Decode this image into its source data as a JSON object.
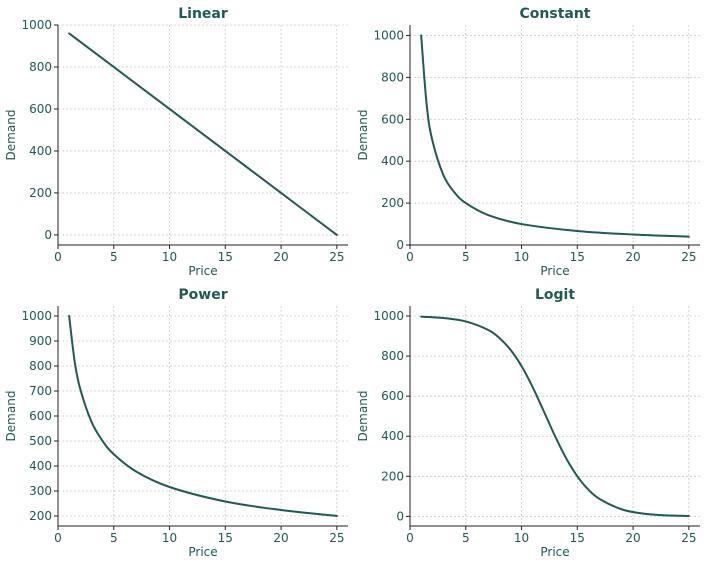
{
  "style": {
    "line_color": "#1f5a55",
    "text_color": "#1f5a55",
    "grid_color": "#c8c8c8",
    "background": "#ffffff"
  },
  "chart_data": [
    {
      "type": "line",
      "title": "Linear",
      "xlabel": "Price",
      "ylabel": "Demand",
      "xlim": [
        0,
        26
      ],
      "ylim": [
        -48,
        1000
      ],
      "xticks": [
        0,
        5,
        10,
        15,
        20,
        25
      ],
      "xtick_labels": [
        "0",
        "5",
        "10",
        "15",
        "20",
        "25"
      ],
      "yticks": [
        0,
        200,
        400,
        600,
        800,
        1000
      ],
      "ytick_labels": [
        "0",
        "200",
        "400",
        "600",
        "800",
        "1000"
      ],
      "grid": true,
      "x": [
        1,
        5,
        10,
        15,
        20,
        25
      ],
      "y": [
        960,
        800,
        600,
        400,
        200,
        0
      ]
    },
    {
      "type": "line",
      "title": "Constant",
      "xlabel": "Price",
      "ylabel": "Demand",
      "xlim": [
        0,
        26
      ],
      "ylim": [
        0,
        1050
      ],
      "xticks": [
        0,
        5,
        10,
        15,
        20,
        25
      ],
      "xtick_labels": [
        "0",
        "5",
        "10",
        "15",
        "20",
        "25"
      ],
      "yticks": [
        0,
        200,
        400,
        600,
        800,
        1000
      ],
      "ytick_labels": [
        "0",
        "200",
        "400",
        "600",
        "800",
        "1000"
      ],
      "grid": true,
      "x": [
        1,
        1.5,
        2,
        3,
        4,
        5,
        7,
        10,
        15,
        20,
        25
      ],
      "y": [
        1000,
        667,
        500,
        333,
        250,
        200,
        143,
        100,
        67,
        50,
        40
      ]
    },
    {
      "type": "line",
      "title": "Power",
      "xlabel": "Price",
      "ylabel": "Demand",
      "xlim": [
        0,
        26
      ],
      "ylim": [
        160,
        1040
      ],
      "xticks": [
        0,
        5,
        10,
        15,
        20,
        25
      ],
      "xtick_labels": [
        "0",
        "5",
        "10",
        "15",
        "20",
        "25"
      ],
      "yticks": [
        200,
        300,
        400,
        500,
        600,
        700,
        800,
        900,
        1000
      ],
      "ytick_labels": [
        "200",
        "300",
        "400",
        "500",
        "600",
        "700",
        "800",
        "900",
        "1000"
      ],
      "grid": true,
      "x": [
        1,
        1.5,
        2,
        3,
        4,
        5,
        7,
        10,
        15,
        20,
        25
      ],
      "y": [
        1000,
        816,
        707,
        577,
        500,
        447,
        378,
        316,
        258,
        224,
        200
      ]
    },
    {
      "type": "line",
      "title": "Logit",
      "xlabel": "Price",
      "ylabel": "Demand",
      "xlim": [
        0,
        26
      ],
      "ylim": [
        -48,
        1050
      ],
      "xticks": [
        0,
        5,
        10,
        15,
        20,
        25
      ],
      "xtick_labels": [
        "0",
        "5",
        "10",
        "15",
        "20",
        "25"
      ],
      "yticks": [
        0,
        200,
        400,
        600,
        800,
        1000
      ],
      "ytick_labels": [
        "0",
        "200",
        "400",
        "600",
        "800",
        "1000"
      ],
      "grid": true,
      "x": [
        1,
        3,
        5,
        7,
        8,
        9,
        10,
        11,
        12,
        13,
        14,
        15,
        16,
        17,
        19,
        21,
        23,
        25
      ],
      "y": [
        997,
        990,
        973,
        931,
        891,
        832,
        750,
        645,
        524,
        401,
        290,
        200,
        133,
        87,
        35,
        13,
        5,
        2
      ]
    }
  ]
}
